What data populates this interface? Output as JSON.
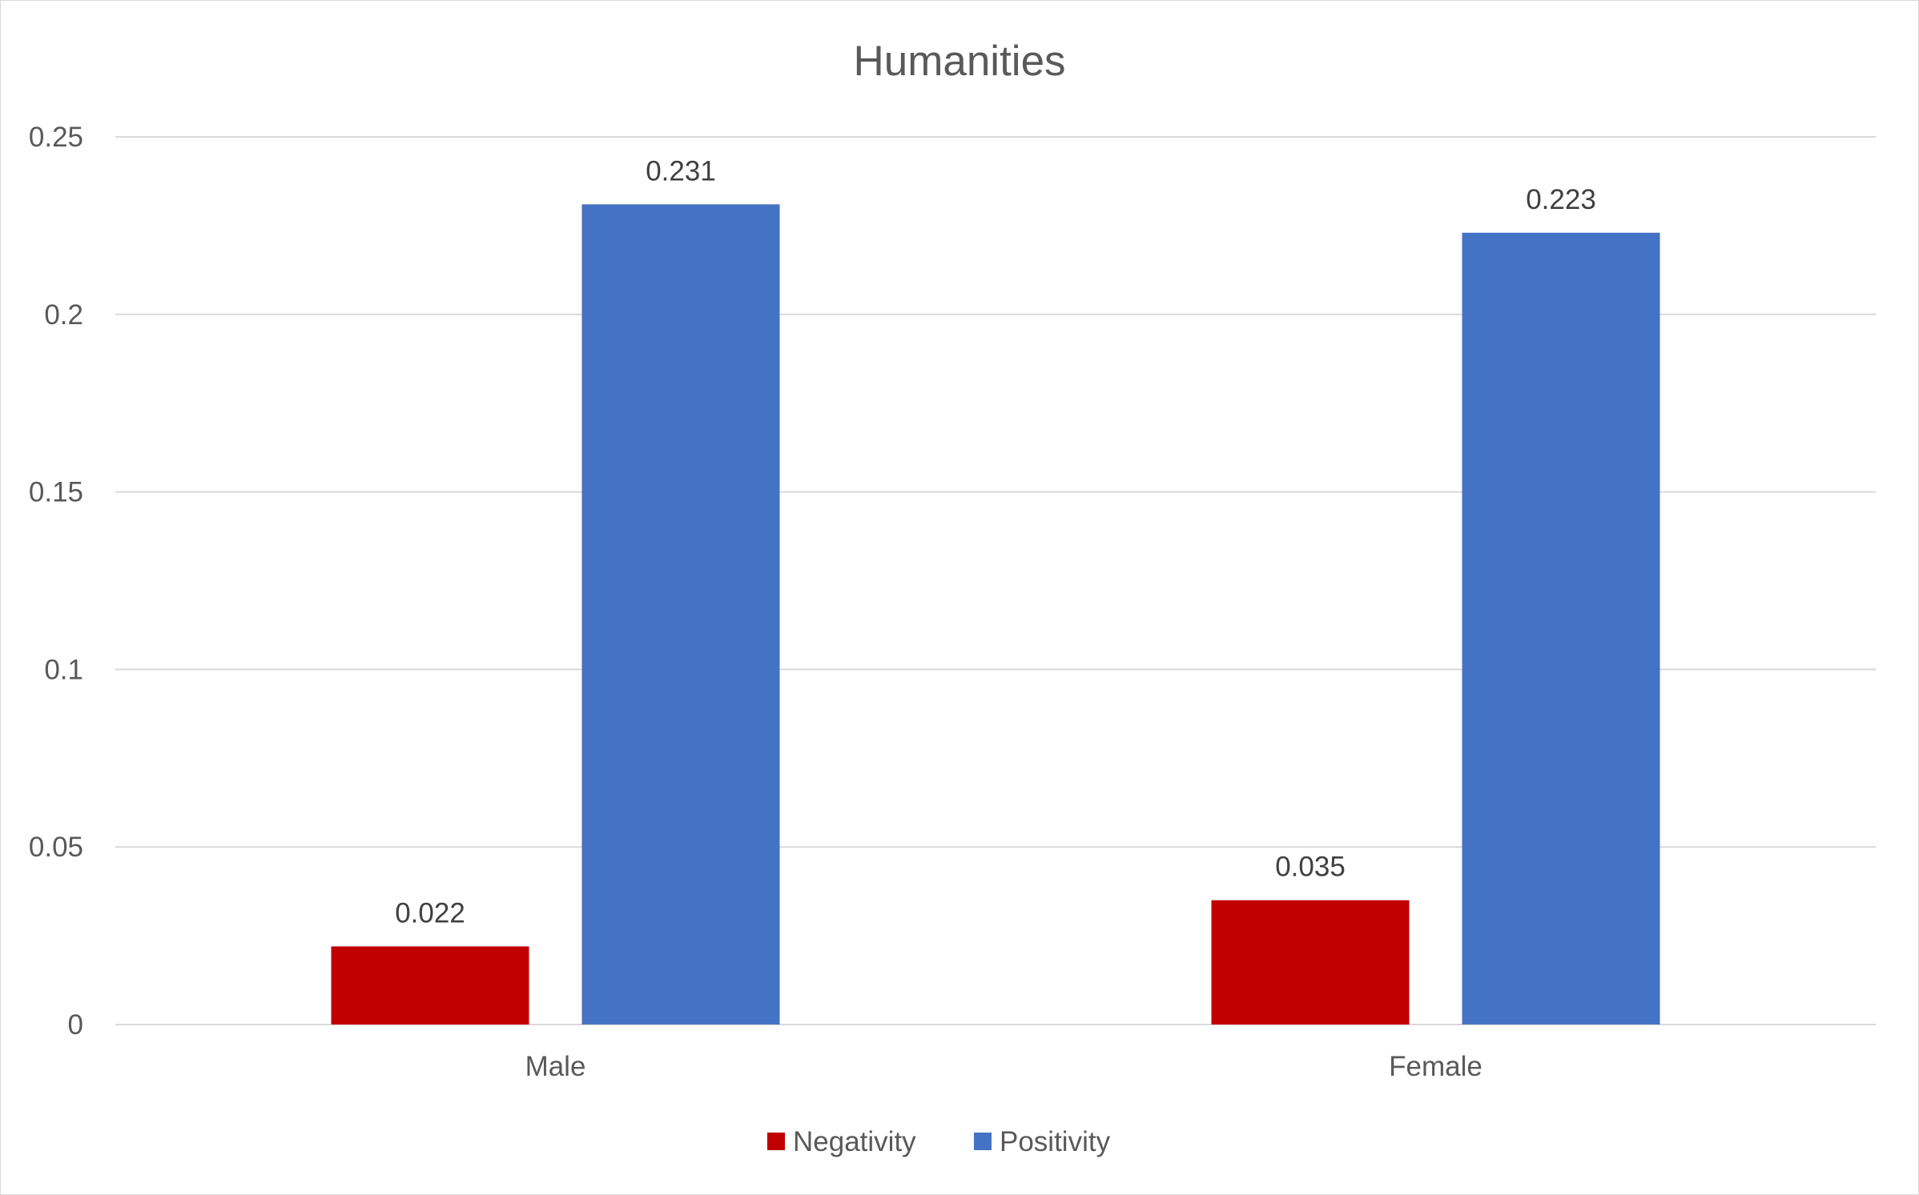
{
  "chart_data": {
    "type": "bar",
    "title": "Humanities",
    "xlabel": "",
    "ylabel": "",
    "categories": [
      "Male",
      "Female"
    ],
    "series": [
      {
        "name": "Negativity",
        "color": "#c00000",
        "values": [
          0.022,
          0.035
        ],
        "labels": [
          "0.022",
          "0.035"
        ]
      },
      {
        "name": "Positivity",
        "color": "#4472c4",
        "values": [
          0.231,
          0.223
        ],
        "labels": [
          "0.231",
          "0.223"
        ]
      }
    ],
    "ylim": [
      0,
      0.25
    ],
    "yticks": [
      0,
      0.05,
      0.1,
      0.15,
      0.2,
      0.25
    ],
    "ytick_labels": [
      "0",
      "0.05",
      "0.1",
      "0.15",
      "0.2",
      "0.25"
    ],
    "grid": true,
    "legend": "bottom"
  }
}
